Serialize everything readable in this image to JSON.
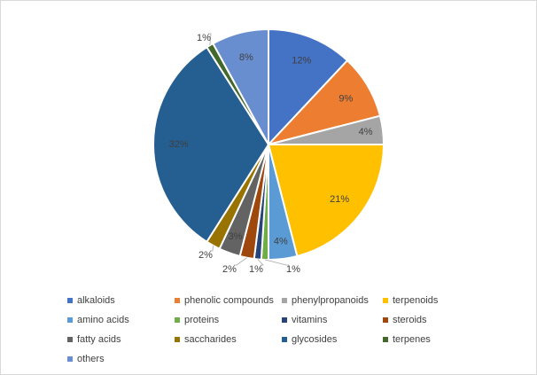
{
  "chart_data": {
    "type": "pie",
    "title": "",
    "legend_position": "bottom",
    "categories": [
      "alkaloids",
      "phenolic compounds",
      "phenylpropanoids",
      "terpenoids",
      "amino acids",
      "proteins",
      "vitamins",
      "steroids",
      "fatty acids",
      "saccharides",
      "glycosides",
      "terpenes",
      "others"
    ],
    "values": [
      12,
      9,
      4,
      21,
      4,
      1,
      1,
      2,
      3,
      2,
      32,
      1,
      8
    ],
    "labels": [
      "12%",
      "9%",
      "4%",
      "21%",
      "4%",
      "1%",
      "1%",
      "2%",
      "3%",
      "2%",
      "32%",
      "1%",
      "8%"
    ],
    "colors": [
      "#4472c4",
      "#ed7d31",
      "#a5a5a5",
      "#ffc000",
      "#5b9bd5",
      "#70ad47",
      "#264478",
      "#9e480e",
      "#636363",
      "#997300",
      "#255e91",
      "#43682b",
      "#698ed0"
    ]
  }
}
